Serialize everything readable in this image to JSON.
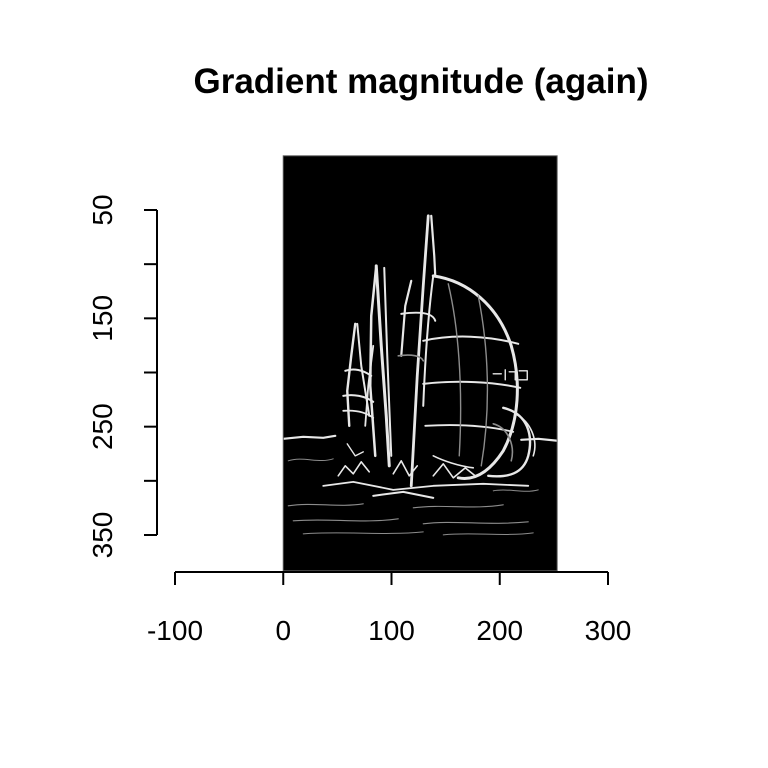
{
  "chart_data": {
    "type": "heatmap",
    "title": "Gradient magnitude (again)",
    "xlabel": "",
    "ylabel": "",
    "xlim": [
      -100,
      300
    ],
    "ylim": [
      350,
      50
    ],
    "x_ticks": [
      -100,
      0,
      100,
      200,
      300
    ],
    "y_ticks": [
      50,
      100,
      150,
      200,
      250,
      300,
      350
    ],
    "y_tick_labels": [
      "50",
      "",
      "150",
      "",
      "250",
      "",
      "350"
    ],
    "image_extent": {
      "x": [
        0,
        253
      ],
      "y": [
        0,
        383
      ]
    },
    "image_content": "grayscale gradient magnitude (edge map) of sailboats on water",
    "colormap": "grayscale",
    "background_color": "#000000",
    "edge_color": "#e8e8e8"
  }
}
